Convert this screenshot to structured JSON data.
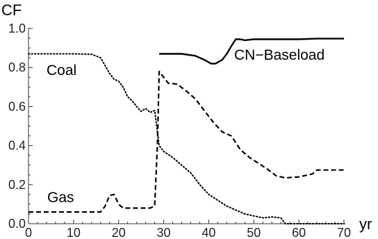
{
  "chart_data": {
    "type": "line",
    "xlabel": "yr",
    "ylabel": "CF",
    "xlim": [
      0,
      70
    ],
    "ylim": [
      0,
      1.0
    ],
    "x_ticks": [
      0,
      10,
      20,
      30,
      40,
      50,
      60,
      70
    ],
    "y_ticks": [
      0.0,
      0.2,
      0.4,
      0.6,
      0.8,
      1.0
    ],
    "x_tick_labels": [
      "0",
      "10",
      "20",
      "30",
      "40",
      "50",
      "60",
      "70"
    ],
    "y_tick_labels": [
      "0.0",
      "0.2",
      "0.4",
      "0.6",
      "0.8",
      "1.0"
    ],
    "grid": false,
    "series": [
      {
        "name": "Coal",
        "style": "dotted",
        "color": "#000000",
        "points": [
          [
            0,
            0.87
          ],
          [
            10,
            0.87
          ],
          [
            14,
            0.868
          ],
          [
            16,
            0.85
          ],
          [
            17,
            0.81
          ],
          [
            18,
            0.77
          ],
          [
            19,
            0.74
          ],
          [
            20,
            0.73
          ],
          [
            21,
            0.7
          ],
          [
            22,
            0.65
          ],
          [
            23,
            0.63
          ],
          [
            24,
            0.6
          ],
          [
            25,
            0.575
          ],
          [
            26,
            0.59
          ],
          [
            27,
            0.57
          ],
          [
            28,
            0.58
          ],
          [
            29,
            0.4
          ],
          [
            30,
            0.37
          ],
          [
            32,
            0.34
          ],
          [
            34,
            0.3
          ],
          [
            36,
            0.26
          ],
          [
            38,
            0.2
          ],
          [
            40,
            0.15
          ],
          [
            42,
            0.12
          ],
          [
            44,
            0.09
          ],
          [
            46,
            0.07
          ],
          [
            48,
            0.05
          ],
          [
            50,
            0.04
          ],
          [
            52,
            0.03
          ],
          [
            54,
            0.035
          ],
          [
            56,
            0.03
          ],
          [
            57,
            0.0
          ],
          [
            58,
            0.0
          ],
          [
            70,
            0.0
          ]
        ]
      },
      {
        "name": "Gas",
        "style": "dashed",
        "color": "#000000",
        "points": [
          [
            0,
            0.06
          ],
          [
            16,
            0.06
          ],
          [
            17,
            0.09
          ],
          [
            18,
            0.145
          ],
          [
            19,
            0.15
          ],
          [
            20,
            0.1
          ],
          [
            21,
            0.08
          ],
          [
            25,
            0.08
          ],
          [
            27,
            0.08
          ],
          [
            28,
            0.09
          ],
          [
            28.6,
            0.4
          ],
          [
            29,
            0.78
          ],
          [
            30,
            0.75
          ],
          [
            31,
            0.72
          ],
          [
            33,
            0.715
          ],
          [
            35,
            0.68
          ],
          [
            37,
            0.64
          ],
          [
            39,
            0.58
          ],
          [
            41,
            0.52
          ],
          [
            43,
            0.47
          ],
          [
            45,
            0.45
          ],
          [
            47,
            0.38
          ],
          [
            49,
            0.34
          ],
          [
            51,
            0.31
          ],
          [
            53,
            0.28
          ],
          [
            55,
            0.245
          ],
          [
            57,
            0.235
          ],
          [
            60,
            0.24
          ],
          [
            62,
            0.25
          ],
          [
            63,
            0.255
          ],
          [
            64,
            0.275
          ],
          [
            70,
            0.275
          ]
        ]
      },
      {
        "name": "CN−Baseload",
        "style": "solid",
        "color": "#000000",
        "points": [
          [
            29,
            0.87
          ],
          [
            34,
            0.87
          ],
          [
            37,
            0.86
          ],
          [
            39,
            0.84
          ],
          [
            40.5,
            0.82
          ],
          [
            41.5,
            0.82
          ],
          [
            43,
            0.84
          ],
          [
            44,
            0.87
          ],
          [
            45,
            0.91
          ],
          [
            46,
            0.945
          ],
          [
            47,
            0.945
          ],
          [
            48,
            0.94
          ],
          [
            50,
            0.945
          ],
          [
            60,
            0.945
          ],
          [
            64,
            0.948
          ],
          [
            70,
            0.948
          ]
        ]
      }
    ],
    "annotations": [
      "Coal",
      "Gas",
      "CN−Baseload"
    ]
  }
}
